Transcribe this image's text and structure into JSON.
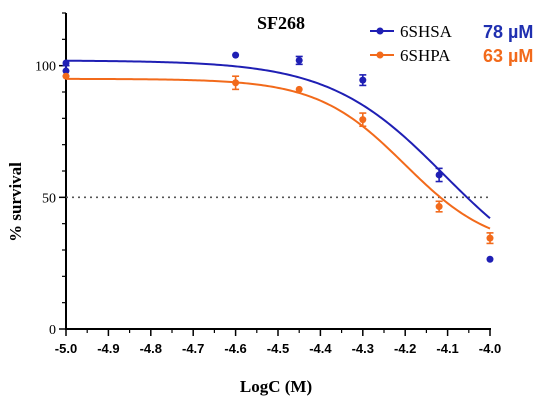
{
  "chart_data": {
    "type": "scatter",
    "title": "SF268",
    "xlabel": "LogC (M)",
    "ylabel": "% survival",
    "xlim": [
      -5.0,
      -4.0
    ],
    "ylim": [
      0,
      120
    ],
    "x_ticks": [
      -5.0,
      -4.9,
      -4.8,
      -4.7,
      -4.6,
      -4.5,
      -4.4,
      -4.3,
      -4.2,
      -4.1,
      -4.0
    ],
    "x_tick_labels": [
      "-5.0",
      "-4.9",
      "-4.8",
      "-4.7",
      "-4.6",
      "-4.5",
      "-4.4",
      "-4.3",
      "-4.2",
      "-4.1",
      "-4.0"
    ],
    "y_ticks": [
      0,
      50,
      100
    ],
    "y_tick_labels": [
      "0",
      "50",
      "100"
    ],
    "reference_line": {
      "y": 50,
      "style": "dotted",
      "color": "#555555"
    },
    "grid": false,
    "legend_position": "top-right",
    "series": [
      {
        "name": "6SHSA",
        "ic50_label": "78 µM",
        "color": "#1f1fb4",
        "label_color": "#1f2fb0",
        "fit": {
          "top": 102,
          "bottom": 15,
          "logIC50": -4.108,
          "hill": 3.2
        },
        "points": [
          {
            "x": -5.0,
            "y": 98,
            "err": 2
          },
          {
            "x": -5.0,
            "y": 101,
            "err": 0
          },
          {
            "x": -4.6,
            "y": 104,
            "err": 0
          },
          {
            "x": -4.45,
            "y": 102,
            "err": 1.5
          },
          {
            "x": -4.3,
            "y": 94.5,
            "err": 2
          },
          {
            "x": -4.12,
            "y": 58.5,
            "err": 2.5
          },
          {
            "x": -4.0,
            "y": 26.5,
            "err": 0
          }
        ]
      },
      {
        "name": "6SHPA",
        "ic50_label": "63 µM",
        "color": "#f26a1b",
        "label_color": "#f26a1b",
        "fit": {
          "top": 95,
          "bottom": 30,
          "logIC50": -4.201,
          "hill": 4.2
        },
        "points": [
          {
            "x": -5.0,
            "y": 96,
            "err": 0
          },
          {
            "x": -4.6,
            "y": 93.5,
            "err": 2.5
          },
          {
            "x": -4.45,
            "y": 91,
            "err": 0
          },
          {
            "x": -4.3,
            "y": 79.5,
            "err": 2.5
          },
          {
            "x": -4.12,
            "y": 46.5,
            "err": 2
          },
          {
            "x": -4.0,
            "y": 34.5,
            "err": 2
          }
        ]
      }
    ]
  }
}
